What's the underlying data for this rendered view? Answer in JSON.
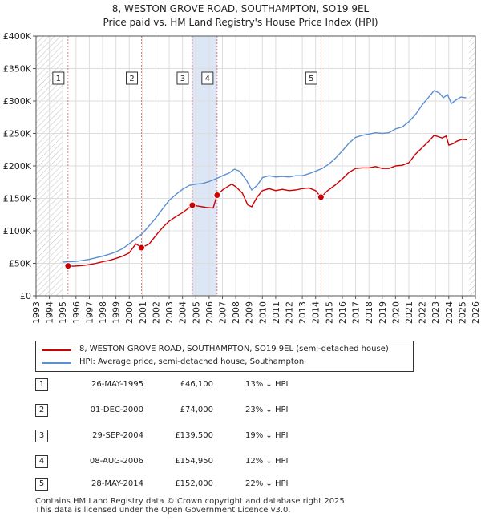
{
  "title_line1": "8, WESTON GROVE ROAD, SOUTHAMPTON, SO19 9EL",
  "title_line2": "Price paid vs. HM Land Registry's House Price Index (HPI)",
  "colors": {
    "price_line": "#cc0000",
    "hpi_line": "#5b8fcf",
    "shade": "#dde6f4",
    "hatch": "#c8c8c8",
    "marker_border": "#cc3333"
  },
  "chart_data": {
    "type": "line",
    "title": "Price paid vs. HM Land Registry's House Price Index (HPI)",
    "xlim": [
      1993,
      2026
    ],
    "ylim": [
      0,
      400000
    ],
    "y_ticks": [
      0,
      50000,
      100000,
      150000,
      200000,
      250000,
      300000,
      350000,
      400000
    ],
    "y_tick_labels": [
      "£0",
      "£50K",
      "£100K",
      "£150K",
      "£200K",
      "£250K",
      "£300K",
      "£350K",
      "£400K"
    ],
    "x_ticks": [
      1993,
      1994,
      1995,
      1996,
      1997,
      1998,
      1999,
      2000,
      2001,
      2002,
      2003,
      2004,
      2005,
      2006,
      2007,
      2008,
      2009,
      2010,
      2011,
      2012,
      2013,
      2014,
      2015,
      2016,
      2017,
      2018,
      2019,
      2020,
      2021,
      2022,
      2023,
      2024,
      2025,
      2026
    ],
    "series": [
      {
        "name": "8, WESTON GROVE ROAD, SOUTHAMPTON, SO19 9EL (semi-detached house)",
        "color": "#cc0000",
        "points": [
          [
            1995.4,
            46100
          ],
          [
            1995.8,
            45500
          ],
          [
            1996.5,
            46500
          ],
          [
            1997.0,
            48000
          ],
          [
            1997.5,
            50000
          ],
          [
            1998.0,
            52500
          ],
          [
            1998.5,
            54500
          ],
          [
            1999.0,
            57500
          ],
          [
            1999.5,
            61000
          ],
          [
            2000.0,
            66000
          ],
          [
            2000.5,
            80000
          ],
          [
            2000.92,
            74000
          ],
          [
            2001.5,
            80000
          ],
          [
            2002.0,
            93000
          ],
          [
            2002.5,
            105000
          ],
          [
            2003.0,
            115000
          ],
          [
            2003.5,
            122000
          ],
          [
            2004.0,
            128000
          ],
          [
            2004.74,
            139500
          ],
          [
            2005.2,
            138000
          ],
          [
            2005.8,
            136000
          ],
          [
            2006.3,
            135000
          ],
          [
            2006.6,
            154950
          ],
          [
            2007.0,
            163000
          ],
          [
            2007.3,
            167000
          ],
          [
            2007.7,
            172000
          ],
          [
            2008.0,
            168000
          ],
          [
            2008.5,
            158000
          ],
          [
            2008.9,
            140000
          ],
          [
            2009.2,
            137000
          ],
          [
            2009.6,
            152000
          ],
          [
            2010.0,
            162000
          ],
          [
            2010.5,
            165000
          ],
          [
            2011.0,
            162000
          ],
          [
            2011.5,
            164000
          ],
          [
            2012.0,
            162000
          ],
          [
            2012.5,
            163000
          ],
          [
            2013.0,
            165000
          ],
          [
            2013.5,
            166000
          ],
          [
            2014.0,
            162000
          ],
          [
            2014.4,
            152000
          ],
          [
            2014.9,
            162000
          ],
          [
            2015.5,
            171000
          ],
          [
            2016.0,
            180000
          ],
          [
            2016.5,
            190000
          ],
          [
            2017.0,
            196000
          ],
          [
            2017.5,
            197000
          ],
          [
            2018.0,
            197000
          ],
          [
            2018.5,
            199000
          ],
          [
            2019.0,
            196000
          ],
          [
            2019.5,
            196000
          ],
          [
            2020.0,
            200000
          ],
          [
            2020.5,
            201000
          ],
          [
            2021.0,
            205000
          ],
          [
            2021.5,
            218000
          ],
          [
            2022.0,
            228000
          ],
          [
            2022.5,
            238000
          ],
          [
            2022.9,
            247000
          ],
          [
            2023.2,
            245000
          ],
          [
            2023.5,
            243000
          ],
          [
            2023.8,
            246000
          ],
          [
            2024.0,
            232000
          ],
          [
            2024.3,
            234000
          ],
          [
            2024.6,
            238000
          ],
          [
            2025.0,
            241000
          ],
          [
            2025.4,
            240000
          ]
        ]
      },
      {
        "name": "HPI: Average price, semi-detached house, Southampton",
        "color": "#5b8fcf",
        "points": [
          [
            1995.0,
            52000
          ],
          [
            1995.5,
            52500
          ],
          [
            1996.0,
            53000
          ],
          [
            1996.5,
            54500
          ],
          [
            1997.0,
            56000
          ],
          [
            1997.5,
            58500
          ],
          [
            1998.0,
            61000
          ],
          [
            1998.5,
            64000
          ],
          [
            1999.0,
            67500
          ],
          [
            1999.5,
            72500
          ],
          [
            2000.0,
            80000
          ],
          [
            2000.5,
            88000
          ],
          [
            2001.0,
            96000
          ],
          [
            2001.5,
            108000
          ],
          [
            2002.0,
            120000
          ],
          [
            2002.5,
            134000
          ],
          [
            2003.0,
            147000
          ],
          [
            2003.5,
            156000
          ],
          [
            2004.0,
            164000
          ],
          [
            2004.5,
            170000
          ],
          [
            2005.0,
            172000
          ],
          [
            2005.5,
            173000
          ],
          [
            2006.0,
            176000
          ],
          [
            2006.5,
            180000
          ],
          [
            2007.0,
            185000
          ],
          [
            2007.5,
            189000
          ],
          [
            2007.9,
            195000
          ],
          [
            2008.3,
            192000
          ],
          [
            2008.8,
            178000
          ],
          [
            2009.2,
            163000
          ],
          [
            2009.6,
            170000
          ],
          [
            2010.0,
            182000
          ],
          [
            2010.5,
            185000
          ],
          [
            2011.0,
            183000
          ],
          [
            2011.5,
            184000
          ],
          [
            2012.0,
            183000
          ],
          [
            2012.5,
            185000
          ],
          [
            2013.0,
            185000
          ],
          [
            2013.5,
            188000
          ],
          [
            2014.0,
            192000
          ],
          [
            2014.5,
            196000
          ],
          [
            2015.0,
            203000
          ],
          [
            2015.5,
            212000
          ],
          [
            2016.0,
            223000
          ],
          [
            2016.5,
            235000
          ],
          [
            2017.0,
            244000
          ],
          [
            2017.5,
            247000
          ],
          [
            2018.0,
            249000
          ],
          [
            2018.5,
            251000
          ],
          [
            2019.0,
            250000
          ],
          [
            2019.5,
            251000
          ],
          [
            2020.0,
            257000
          ],
          [
            2020.5,
            260000
          ],
          [
            2021.0,
            268000
          ],
          [
            2021.5,
            279000
          ],
          [
            2022.0,
            294000
          ],
          [
            2022.5,
            306000
          ],
          [
            2022.9,
            316000
          ],
          [
            2023.3,
            312000
          ],
          [
            2023.6,
            305000
          ],
          [
            2023.9,
            310000
          ],
          [
            2024.2,
            296000
          ],
          [
            2024.5,
            301000
          ],
          [
            2024.9,
            306000
          ],
          [
            2025.3,
            305000
          ]
        ]
      }
    ],
    "sales": [
      {
        "label": "1",
        "year": 1995.4,
        "price": 46100
      },
      {
        "label": "2",
        "year": 2000.92,
        "price": 74000
      },
      {
        "label": "3",
        "year": 2004.74,
        "price": 139500
      },
      {
        "label": "4",
        "year": 2006.6,
        "price": 154950
      },
      {
        "label": "5",
        "year": 2014.4,
        "price": 152000
      }
    ],
    "shaded_periods": [
      [
        2004.74,
        2006.6
      ]
    ],
    "hatched_periods": [
      [
        1993,
        1995.0
      ],
      [
        2025.5,
        2026
      ]
    ]
  },
  "legend": {
    "property_label": "8, WESTON GROVE ROAD, SOUTHAMPTON, SO19 9EL (semi-detached house)",
    "hpi_label": "HPI: Average price, semi-detached house, Southampton"
  },
  "sales_table": [
    {
      "num": "1",
      "date": "26-MAY-1995",
      "price": "£46,100",
      "hpi": "13% ↓ HPI"
    },
    {
      "num": "2",
      "date": "01-DEC-2000",
      "price": "£74,000",
      "hpi": "23% ↓ HPI"
    },
    {
      "num": "3",
      "date": "29-SEP-2004",
      "price": "£139,500",
      "hpi": "19% ↓ HPI"
    },
    {
      "num": "4",
      "date": "08-AUG-2006",
      "price": "£154,950",
      "hpi": "12% ↓ HPI"
    },
    {
      "num": "5",
      "date": "28-MAY-2014",
      "price": "£152,000",
      "hpi": "22% ↓ HPI"
    }
  ],
  "footer": {
    "line1": "Contains HM Land Registry data © Crown copyright and database right 2025.",
    "line2": "This data is licensed under the Open Government Licence v3.0."
  }
}
